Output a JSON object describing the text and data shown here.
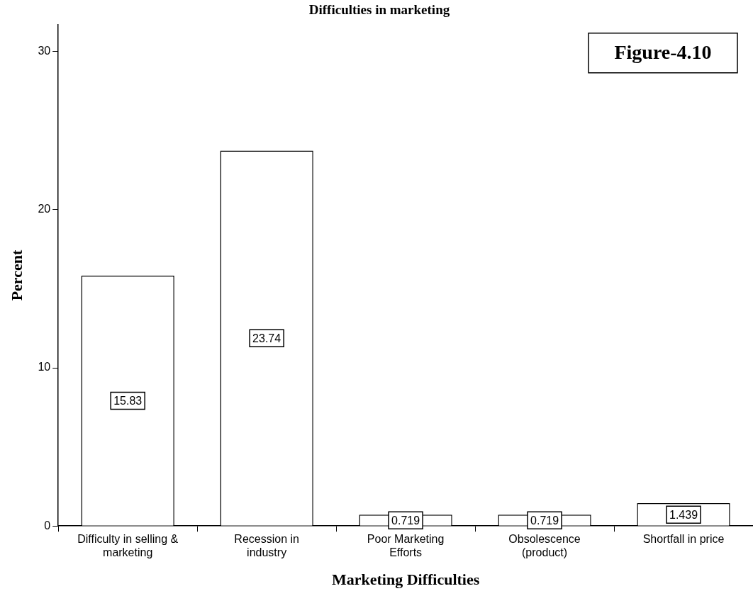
{
  "chart_data": {
    "type": "bar",
    "title": "Difficulties in marketing",
    "xlabel": "Marketing Difficulties",
    "ylabel": "Percent",
    "categories": [
      "Difficulty in selling & marketing",
      "Recession in industry",
      "Poor Marketing Efforts",
      "Obsolescence (product)",
      "Shortfall in price"
    ],
    "values": [
      15.83,
      23.74,
      0.719,
      0.719,
      1.439
    ],
    "color": "#ffffff",
    "ylim": [
      0,
      31.7
    ],
    "yticks": [
      0,
      10,
      20,
      30
    ],
    "grid": false,
    "legend": false,
    "data_labels": true,
    "annotations": [
      "Figure-4.10"
    ]
  }
}
